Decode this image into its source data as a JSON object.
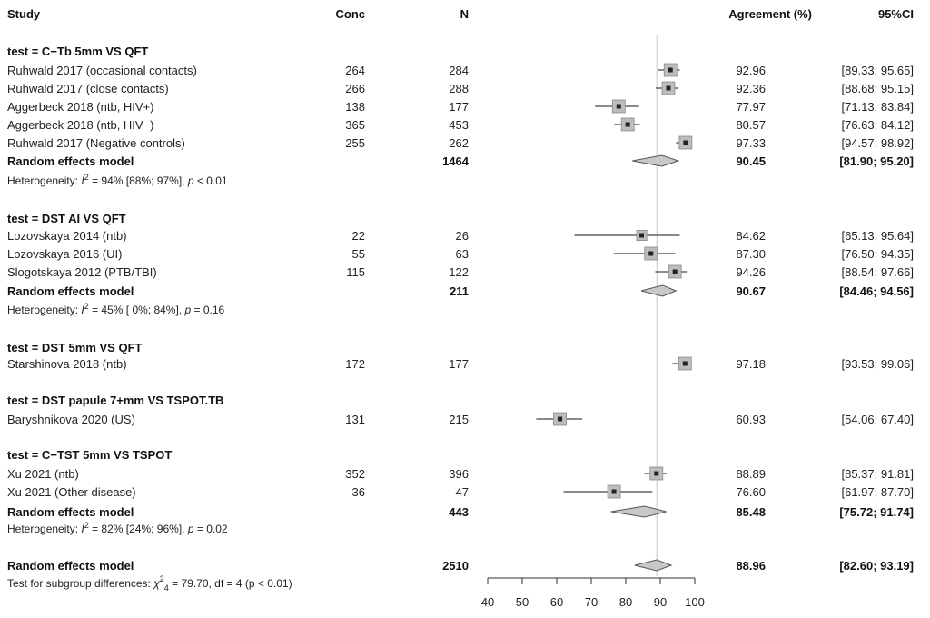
{
  "chart_data": {
    "type": "forest",
    "columns": {
      "study": "Study",
      "conc": "Conc",
      "n": "N",
      "agreement": "Agreement (%)",
      "ci": "95%CI"
    },
    "reference_line": 89,
    "xlim": [
      40,
      100
    ],
    "xticks": [
      "40",
      "50",
      "60",
      "70",
      "80",
      "90",
      "100"
    ],
    "groups": [
      {
        "label": "test = C−Tb 5mm VS QFT",
        "studies": [
          {
            "name": "Ruhwald 2017 (occasional contacts)",
            "conc": "264",
            "n": "284",
            "est": 92.96,
            "lo": 89.33,
            "hi": 95.65,
            "est_text": "92.96",
            "ci_text": "[89.33; 95.65]",
            "weight": 1.0
          },
          {
            "name": "Ruhwald 2017 (close contacts)",
            "conc": "266",
            "n": "288",
            "est": 92.36,
            "lo": 88.68,
            "hi": 95.15,
            "est_text": "92.36",
            "ci_text": "[88.68; 95.15]",
            "weight": 1.0
          },
          {
            "name": "Aggerbeck 2018 (ntb, HIV+)",
            "conc": "138",
            "n": "177",
            "est": 77.97,
            "lo": 71.13,
            "hi": 83.84,
            "est_text": "77.97",
            "ci_text": "[71.13; 83.84]",
            "weight": 1.0
          },
          {
            "name": "Aggerbeck 2018 (ntb, HIV−)",
            "conc": "365",
            "n": "453",
            "est": 80.57,
            "lo": 76.63,
            "hi": 84.12,
            "est_text": "80.57",
            "ci_text": "[76.63; 84.12]",
            "weight": 1.0
          },
          {
            "name": "Ruhwald 2017 (Negative controls)",
            "conc": "255",
            "n": "262",
            "est": 97.33,
            "lo": 94.57,
            "hi": 98.92,
            "est_text": "97.33",
            "ci_text": "[94.57; 98.92]",
            "weight": 1.0
          }
        ],
        "model": {
          "label": "Random effects model",
          "n": "1464",
          "est": 90.45,
          "lo": 81.9,
          "hi": 95.2,
          "est_text": "90.45",
          "ci_text": "[81.90; 95.20]"
        },
        "heterogeneity": {
          "prefix": "Heterogeneity: ",
          "i2_symbol": "I",
          "i2_sup": "2",
          "text": " = 94% [88%; 97%], ",
          "p_symbol": "p",
          "p_text": " < 0.01"
        }
      },
      {
        "label": "test = DST AI VS QFT",
        "studies": [
          {
            "name": "Lozovskaya 2014 (ntb)",
            "conc": "22",
            "n": "26",
            "est": 84.62,
            "lo": 65.13,
            "hi": 95.64,
            "est_text": "84.62",
            "ci_text": "[65.13; 95.64]",
            "weight": 0.8
          },
          {
            "name": "Lozovskaya 2016 (UI)",
            "conc": "55",
            "n": "63",
            "est": 87.3,
            "lo": 76.5,
            "hi": 94.35,
            "est_text": "87.30",
            "ci_text": "[76.50; 94.35]",
            "weight": 1.0
          },
          {
            "name": "Slogotskaya 2012 (PTB/TBI)",
            "conc": "115",
            "n": "122",
            "est": 94.26,
            "lo": 88.54,
            "hi": 97.66,
            "est_text": "94.26",
            "ci_text": "[88.54; 97.66]",
            "weight": 1.0
          }
        ],
        "model": {
          "label": "Random effects model",
          "n": "211",
          "est": 90.67,
          "lo": 84.46,
          "hi": 94.56,
          "est_text": "90.67",
          "ci_text": "[84.46; 94.56]"
        },
        "heterogeneity": {
          "prefix": "Heterogeneity: ",
          "i2_symbol": "I",
          "i2_sup": "2",
          "text": " = 45% [ 0%; 84%], ",
          "p_symbol": "p",
          "p_text": " = 0.16"
        }
      },
      {
        "label": "test = DST 5mm VS QFT",
        "studies": [
          {
            "name": "Starshinova 2018 (ntb)",
            "conc": "172",
            "n": "177",
            "est": 97.18,
            "lo": 93.53,
            "hi": 99.06,
            "est_text": "97.18",
            "ci_text": "[93.53; 99.06]",
            "weight": 1.0
          }
        ]
      },
      {
        "label": "test = DST papule 7+mm VS TSPOT.TB",
        "studies": [
          {
            "name": "Baryshnikova 2020 (US)",
            "conc": "131",
            "n": "215",
            "est": 60.93,
            "lo": 54.06,
            "hi": 67.4,
            "est_text": "60.93",
            "ci_text": "[54.06; 67.40]",
            "weight": 1.0
          }
        ]
      },
      {
        "label": "test = C−TST 5mm VS TSPOT",
        "studies": [
          {
            "name": "Xu 2021 (ntb)",
            "conc": "352",
            "n": "396",
            "est": 88.89,
            "lo": 85.37,
            "hi": 91.81,
            "est_text": "88.89",
            "ci_text": "[85.37; 91.81]",
            "weight": 1.0
          },
          {
            "name": "Xu 2021 (Other disease)",
            "conc": "36",
            "n": "47",
            "est": 76.6,
            "lo": 61.97,
            "hi": 87.7,
            "est_text": "76.60",
            "ci_text": "[61.97; 87.70]",
            "weight": 1.0
          }
        ],
        "model": {
          "label": "Random effects model",
          "n": "443",
          "est": 85.48,
          "lo": 75.72,
          "hi": 91.74,
          "est_text": "85.48",
          "ci_text": "[75.72; 91.74]"
        },
        "heterogeneity": {
          "prefix": "Heterogeneity: ",
          "i2_symbol": "I",
          "i2_sup": "2",
          "text": " = 82% [24%; 96%], ",
          "p_symbol": "p",
          "p_text": " = 0.02"
        }
      }
    ],
    "overall": {
      "label": "Random effects model",
      "n": "2510",
      "est": 88.96,
      "lo": 82.6,
      "hi": 93.19,
      "est_text": "88.96",
      "ci_text": "[82.60; 93.19]"
    },
    "subgroup_test": {
      "prefix": "Test for subgroup differences: ",
      "chi_symbol": "χ",
      "chi_sup": "2",
      "chi_sub": "4",
      "text": " = 79.70, df = 4 (p < 0.01)"
    }
  }
}
